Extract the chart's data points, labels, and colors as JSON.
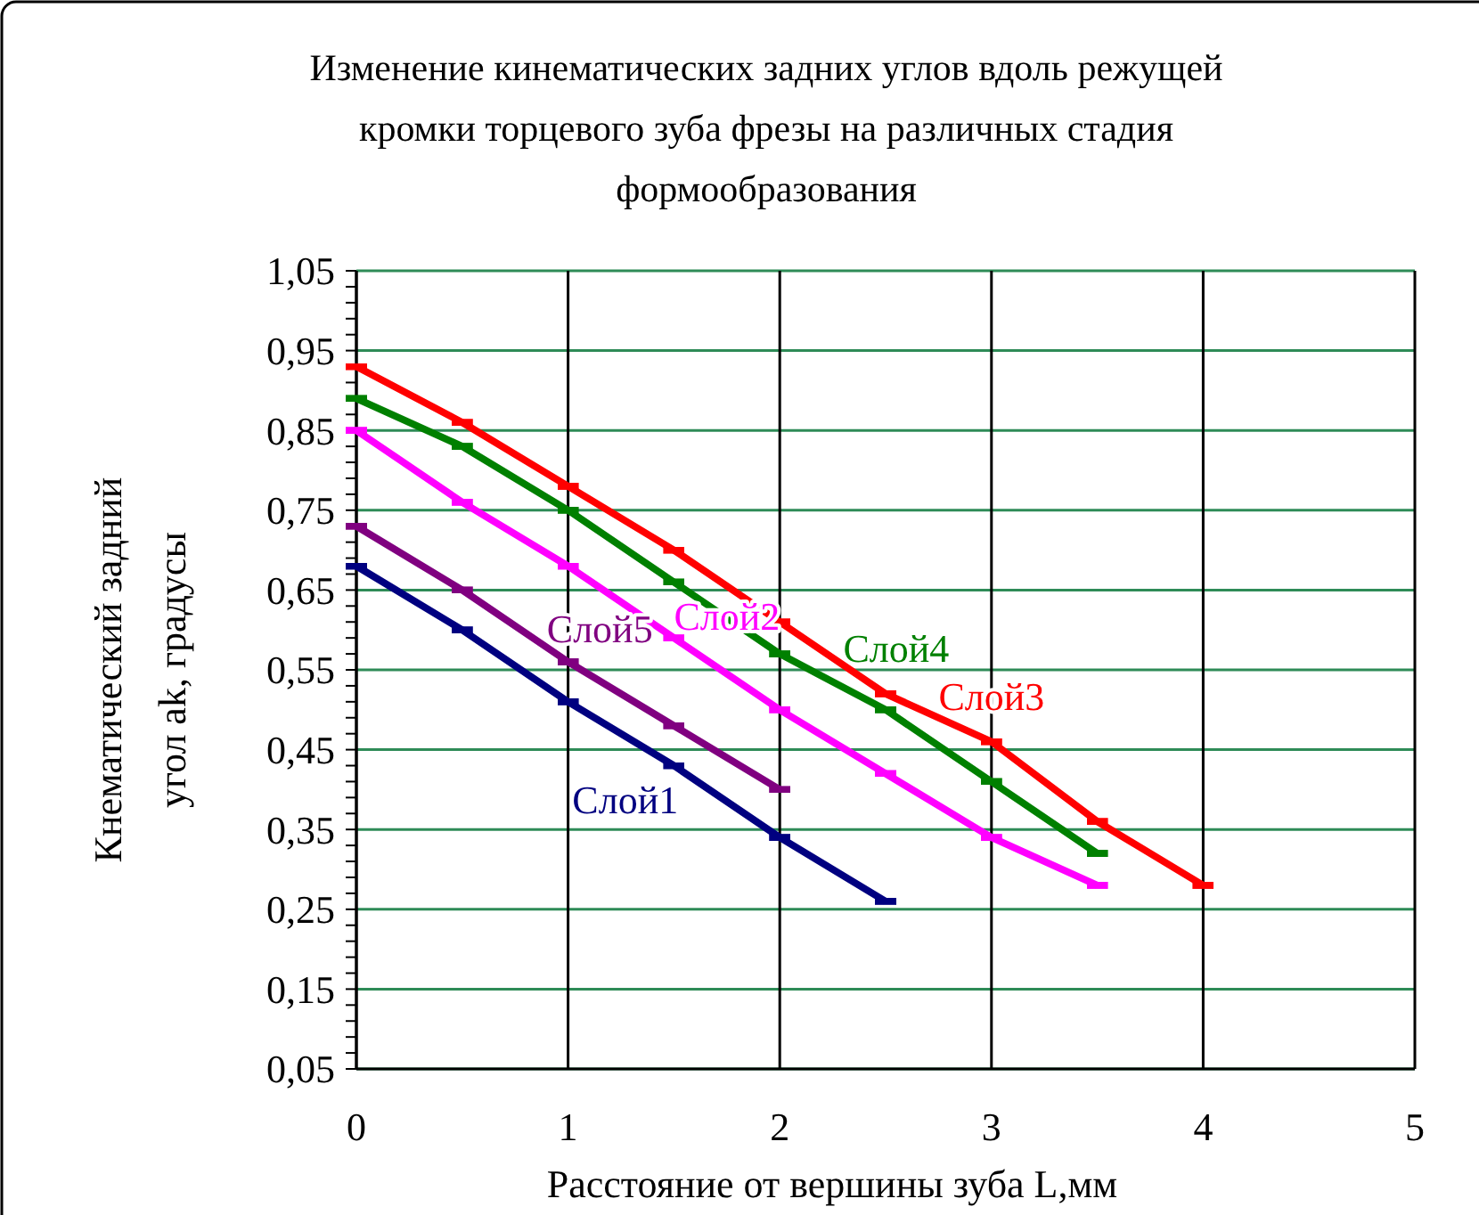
{
  "chart_data": {
    "type": "line",
    "title": "Изменение кинематических задних углов вдоль режущей кромки торцевого зуба фрезы на различных стадия формообразования",
    "xlabel": "Расстояние от вершины зуба L,мм",
    "ylabel": "Кнематический задний угол ak, градусы",
    "xlim": [
      0,
      5
    ],
    "xticks": [
      0,
      1,
      2,
      3,
      4,
      5
    ],
    "ylim": [
      0.05,
      1.05
    ],
    "yticks": [
      {
        "value": 0.05,
        "label": "0,05"
      },
      {
        "value": 0.15,
        "label": "0,15"
      },
      {
        "value": 0.25,
        "label": "0,25"
      },
      {
        "value": 0.35,
        "label": "0,35"
      },
      {
        "value": 0.45,
        "label": "0,45"
      },
      {
        "value": 0.55,
        "label": "0,55"
      },
      {
        "value": 0.65,
        "label": "0,65"
      },
      {
        "value": 0.75,
        "label": "0,75"
      },
      {
        "value": 0.85,
        "label": "0,85"
      },
      {
        "value": 0.95,
        "label": "0,95"
      },
      {
        "value": 1.05,
        "label": "1,05"
      }
    ],
    "grid": true,
    "line_style": "solid",
    "series": [
      {
        "name": "Слой1",
        "color": "#000080",
        "x": [
          0,
          0.5,
          1,
          1.5,
          2,
          2.5
        ],
        "values": [
          0.68,
          0.6,
          0.51,
          0.43,
          0.34,
          0.26
        ]
      },
      {
        "name": "Слой2",
        "color": "#ff00ff",
        "x": [
          0,
          0.5,
          1,
          1.5,
          2,
          2.5,
          3,
          3.5
        ],
        "values": [
          0.85,
          0.76,
          0.68,
          0.59,
          0.5,
          0.42,
          0.34,
          0.28
        ]
      },
      {
        "name": "Слой3",
        "color": "#ff0000",
        "x": [
          0,
          0.5,
          1,
          1.5,
          2,
          2.5,
          3,
          3.5,
          4
        ],
        "values": [
          0.93,
          0.86,
          0.78,
          0.7,
          0.61,
          0.52,
          0.46,
          0.36,
          0.28
        ]
      },
      {
        "name": "Слой4",
        "color": "#008000",
        "x": [
          0,
          0.5,
          1,
          1.5,
          2,
          2.5,
          3,
          3.5
        ],
        "values": [
          0.89,
          0.83,
          0.75,
          0.66,
          0.57,
          0.5,
          0.41,
          0.32
        ]
      },
      {
        "name": "Слой5",
        "color": "#800080",
        "x": [
          0,
          0.5,
          1,
          1.5,
          2
        ],
        "values": [
          0.73,
          0.65,
          0.56,
          0.48,
          0.4
        ]
      }
    ]
  }
}
